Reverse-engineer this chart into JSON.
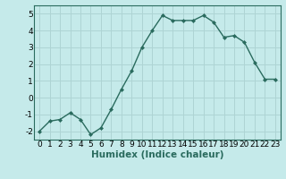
{
  "x": [
    0,
    1,
    2,
    3,
    4,
    5,
    6,
    7,
    8,
    9,
    10,
    11,
    12,
    13,
    14,
    15,
    16,
    17,
    18,
    19,
    20,
    21,
    22,
    23
  ],
  "y": [
    -2.0,
    -1.4,
    -1.3,
    -0.9,
    -1.3,
    -2.2,
    -1.8,
    -0.7,
    0.5,
    1.6,
    3.0,
    4.0,
    4.9,
    4.6,
    4.6,
    4.6,
    4.9,
    4.5,
    3.6,
    3.7,
    3.3,
    2.1,
    1.1,
    1.1
  ],
  "line_color": "#2a6b5e",
  "marker": "D",
  "marker_size": 2,
  "background_color": "#c5eaea",
  "grid_color": "#aed4d4",
  "xlabel": "Humidex (Indice chaleur)",
  "xlim": [
    -0.5,
    23.5
  ],
  "ylim": [
    -2.5,
    5.5
  ],
  "yticks": [
    -2,
    -1,
    0,
    1,
    2,
    3,
    4,
    5
  ],
  "xticks": [
    0,
    1,
    2,
    3,
    4,
    5,
    6,
    7,
    8,
    9,
    10,
    11,
    12,
    13,
    14,
    15,
    16,
    17,
    18,
    19,
    20,
    21,
    22,
    23
  ],
  "xlabel_fontsize": 7.5,
  "tick_fontsize": 6.5,
  "line_width": 1.0
}
